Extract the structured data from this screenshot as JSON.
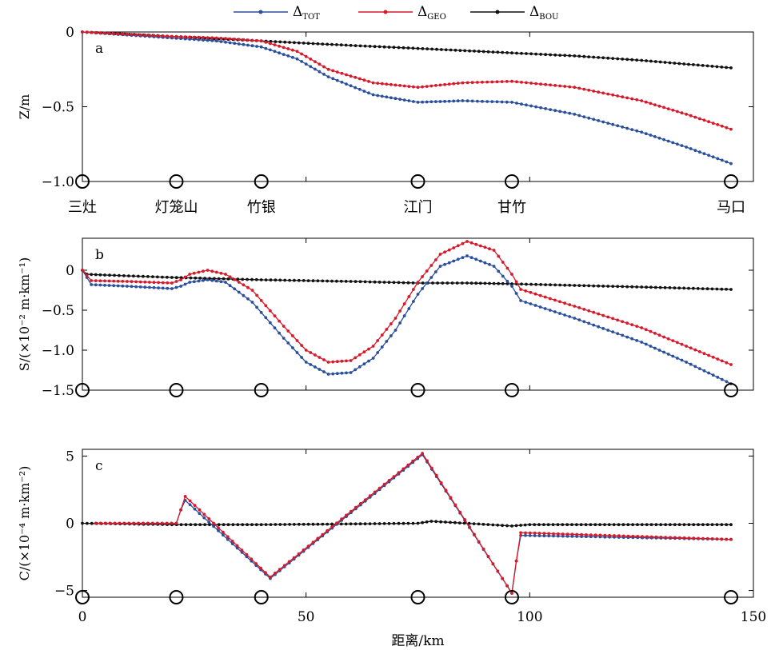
{
  "legend": {
    "items": [
      {
        "base": "Δ",
        "sub": "TOT",
        "color": "#2a4f9c"
      },
      {
        "base": "Δ",
        "sub": "GEO",
        "color": "#d7192a"
      },
      {
        "base": "Δ",
        "sub": "BOU",
        "color": "#111111"
      }
    ]
  },
  "colors": {
    "tot": "#2a4f9c",
    "geo": "#d7192a",
    "bou": "#111111"
  },
  "chart_data": [
    {
      "type": "line",
      "panel_label": "a",
      "ylabel": "Z/m",
      "xlim": [
        0,
        150
      ],
      "ylim": [
        -1.0,
        0.0
      ],
      "yticks": [
        0,
        -0.5,
        -1.0
      ],
      "ytick_labels": [
        "0",
        "−0.5",
        "−1.0"
      ],
      "stations": [
        {
          "name": "三灶",
          "x": 0
        },
        {
          "name": "灯笼山",
          "x": 21
        },
        {
          "name": "竹银",
          "x": 40
        },
        {
          "name": "江门",
          "x": 75
        },
        {
          "name": "甘竹",
          "x": 96
        },
        {
          "name": "马口",
          "x": 145
        }
      ],
      "series": [
        {
          "name": "ΔTOT",
          "key": "tot",
          "x": [
            0,
            10,
            20,
            30,
            40,
            48,
            55,
            65,
            75,
            85,
            96,
            110,
            125,
            135,
            145
          ],
          "y": [
            0,
            -0.02,
            -0.04,
            -0.06,
            -0.1,
            -0.18,
            -0.3,
            -0.42,
            -0.47,
            -0.46,
            -0.47,
            -0.55,
            -0.67,
            -0.77,
            -0.88
          ]
        },
        {
          "name": "ΔGEO",
          "key": "geo",
          "x": [
            0,
            10,
            20,
            30,
            40,
            48,
            55,
            65,
            75,
            85,
            96,
            110,
            125,
            135,
            145
          ],
          "y": [
            0,
            -0.015,
            -0.03,
            -0.04,
            -0.06,
            -0.13,
            -0.25,
            -0.34,
            -0.37,
            -0.34,
            -0.33,
            -0.37,
            -0.46,
            -0.55,
            -0.65
          ]
        },
        {
          "name": "ΔBOU",
          "key": "bou",
          "x": [
            0,
            20,
            40,
            60,
            75,
            96,
            110,
            125,
            145
          ],
          "y": [
            0,
            -0.03,
            -0.06,
            -0.09,
            -0.11,
            -0.14,
            -0.16,
            -0.19,
            -0.24
          ]
        }
      ]
    },
    {
      "type": "line",
      "panel_label": "b",
      "ylabel": "S/(×10⁻² m·km⁻¹)",
      "xlim": [
        0,
        150
      ],
      "ylim": [
        -1.5,
        0.4
      ],
      "yticks": [
        0,
        -0.5,
        -1.0,
        -1.5
      ],
      "ytick_labels": [
        "0",
        "−0.5",
        "−1.0",
        "−1.5"
      ],
      "series": [
        {
          "name": "ΔTOT",
          "key": "tot",
          "x": [
            0,
            2,
            10,
            20,
            22,
            24,
            28,
            32,
            38,
            45,
            50,
            55,
            60,
            65,
            70,
            75,
            80,
            86,
            92,
            96,
            98,
            110,
            125,
            135,
            145
          ],
          "y": [
            0,
            -0.18,
            -0.2,
            -0.23,
            -0.2,
            -0.15,
            -0.12,
            -0.15,
            -0.4,
            -0.85,
            -1.15,
            -1.3,
            -1.28,
            -1.1,
            -0.75,
            -0.3,
            0.05,
            0.18,
            0.05,
            -0.2,
            -0.38,
            -0.6,
            -0.9,
            -1.15,
            -1.42
          ]
        },
        {
          "name": "ΔGEO",
          "key": "geo",
          "x": [
            0,
            2,
            10,
            20,
            22,
            24,
            28,
            32,
            38,
            45,
            50,
            55,
            60,
            65,
            70,
            75,
            80,
            86,
            92,
            96,
            98,
            110,
            125,
            135,
            145
          ],
          "y": [
            0,
            -0.13,
            -0.14,
            -0.16,
            -0.12,
            -0.05,
            0.0,
            -0.05,
            -0.25,
            -0.7,
            -1.0,
            -1.15,
            -1.13,
            -0.95,
            -0.6,
            -0.15,
            0.2,
            0.36,
            0.25,
            -0.05,
            -0.24,
            -0.45,
            -0.72,
            -0.95,
            -1.18
          ]
        },
        {
          "name": "ΔBOU",
          "key": "bou",
          "x": [
            0,
            1,
            5,
            20,
            40,
            60,
            75,
            86,
            96,
            110,
            125,
            145
          ],
          "y": [
            0,
            -0.05,
            -0.06,
            -0.09,
            -0.12,
            -0.14,
            -0.16,
            -0.16,
            -0.17,
            -0.19,
            -0.21,
            -0.24
          ]
        }
      ]
    },
    {
      "type": "line",
      "panel_label": "c",
      "ylabel": "C/(×10⁻⁴ m·km⁻²)",
      "xlabel": "距离/km",
      "xlim": [
        0,
        150
      ],
      "ylim": [
        -5.5,
        5.5
      ],
      "xticks": [
        0,
        50,
        100,
        150
      ],
      "xtick_labels": [
        "0",
        "50",
        "100",
        "150"
      ],
      "yticks": [
        5,
        0,
        -5
      ],
      "ytick_labels": [
        "5",
        "0",
        "−5"
      ],
      "series": [
        {
          "name": "ΔTOT",
          "key": "tot",
          "x": [
            3,
            21,
            22,
            23,
            42,
            76,
            96,
            97,
            98,
            145
          ],
          "y": [
            0,
            0,
            1,
            1.7,
            -4.1,
            5.1,
            -5.2,
            -2.8,
            -0.9,
            -1.2
          ]
        },
        {
          "name": "ΔGEO",
          "key": "geo",
          "x": [
            3,
            21,
            22,
            23,
            42,
            76,
            96,
            97,
            98,
            145
          ],
          "y": [
            0,
            0,
            1,
            2.0,
            -4.0,
            5.2,
            -5.2,
            -2.8,
            -0.7,
            -1.2
          ]
        },
        {
          "name": "ΔBOU",
          "key": "bou",
          "x": [
            0,
            20,
            40,
            60,
            75,
            78,
            96,
            100,
            145
          ],
          "y": [
            0,
            -0.1,
            -0.1,
            -0.05,
            0,
            0.15,
            -0.2,
            -0.1,
            -0.1
          ]
        }
      ]
    }
  ]
}
